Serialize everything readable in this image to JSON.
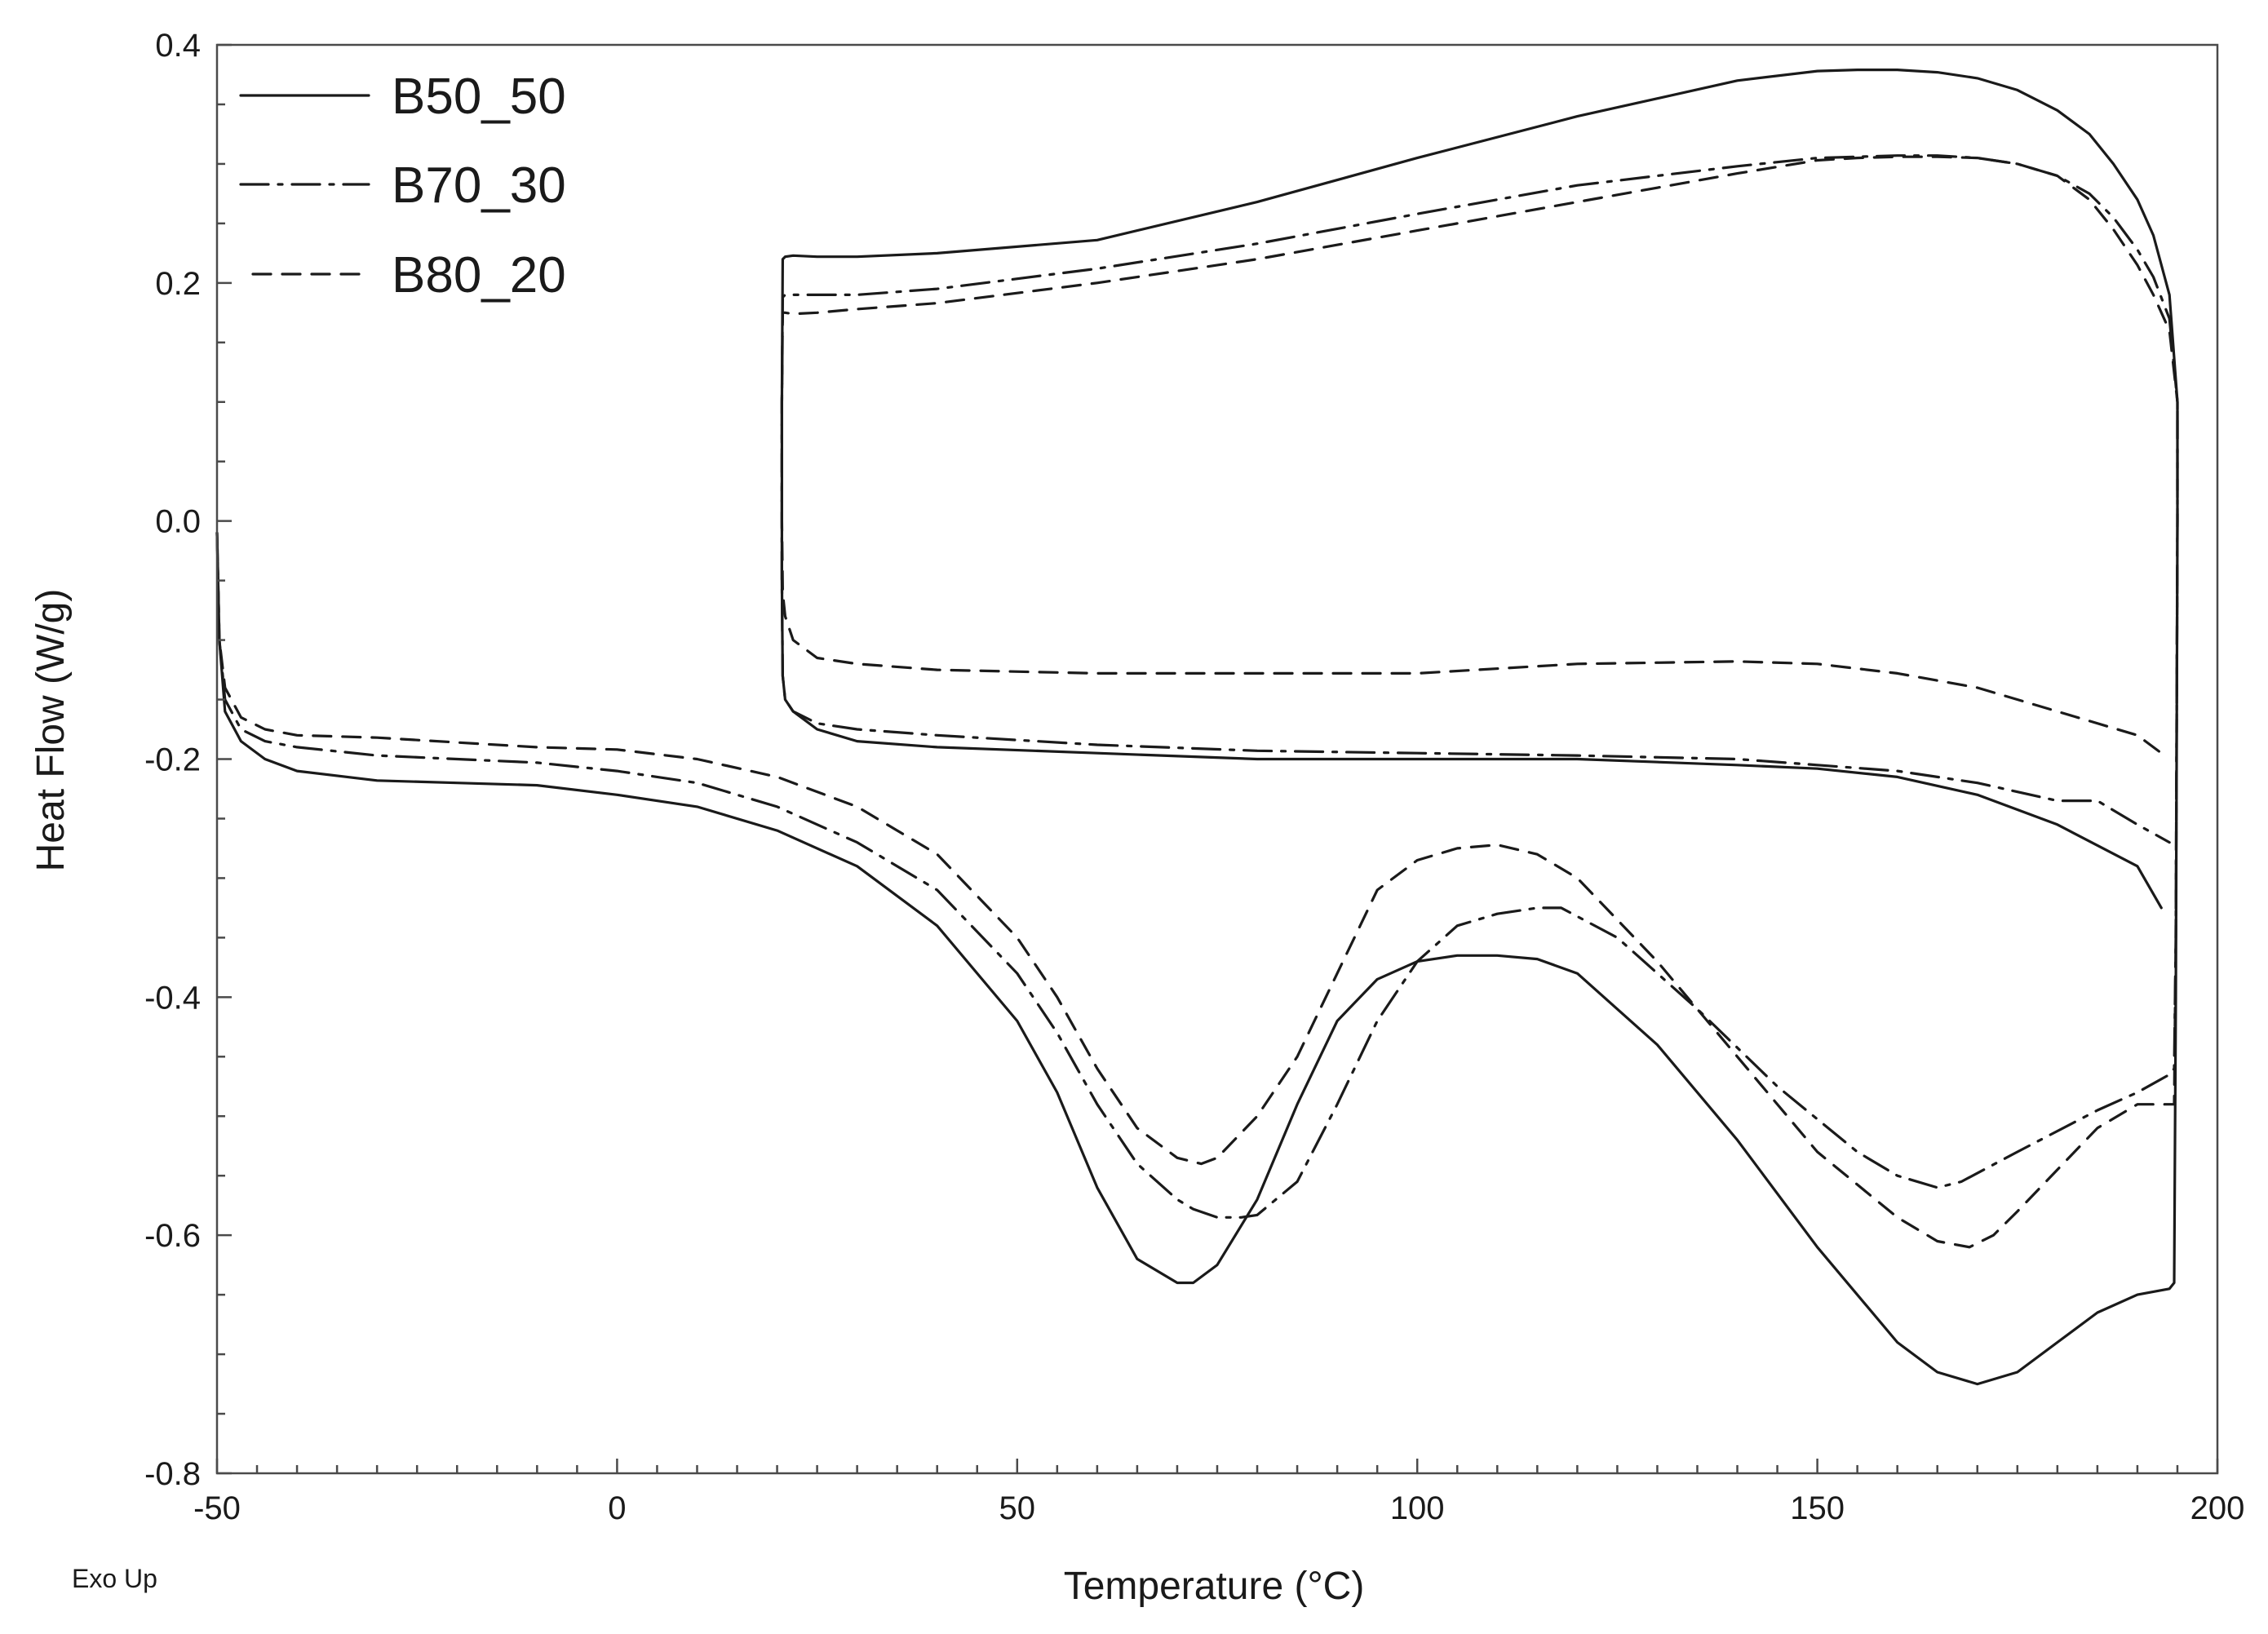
{
  "chart_data": {
    "type": "line",
    "title": "",
    "xlabel": "Temperature (°C)",
    "ylabel": "Heat Flow (W/g)",
    "corner_note": "Exo Up",
    "xlim": [
      -50,
      200
    ],
    "ylim": [
      -0.8,
      0.4
    ],
    "x_ticks": [
      -50,
      0,
      50,
      100,
      150,
      200
    ],
    "x_tick_labels": [
      "-50",
      "0",
      "50",
      "100",
      "150",
      "200"
    ],
    "y_ticks": [
      0.4,
      0.2,
      0.0,
      -0.2,
      -0.4,
      -0.6,
      -0.8
    ],
    "y_tick_labels": [
      "0.4",
      "0.2",
      "0.0",
      "-0.2",
      "-0.4",
      "-0.6",
      "-0.8"
    ],
    "legend_position": "top-left",
    "series": [
      {
        "name": "B50_50",
        "style": "solid",
        "x": [
          -50,
          -49.7,
          -49,
          -47,
          -44,
          -40,
          -30,
          -20,
          -10,
          0,
          10,
          20,
          30,
          40,
          50,
          55,
          60,
          65,
          70,
          72,
          75,
          80,
          85,
          90,
          95,
          100,
          105,
          110,
          115,
          120,
          130,
          140,
          150,
          160,
          165,
          170,
          175,
          180,
          185,
          190,
          194,
          194.6,
          194.8,
          195,
          195,
          195,
          194,
          192,
          190,
          187,
          184,
          180,
          175,
          170,
          165,
          160,
          155,
          150,
          140,
          120,
          100,
          80,
          60,
          40,
          30,
          25,
          22,
          21,
          20.7,
          20.6,
          20.6,
          20.7,
          21,
          22,
          25,
          30,
          40,
          60,
          80,
          100,
          120,
          140,
          150,
          160,
          170,
          180,
          190,
          193
        ],
        "y": [
          -0.01,
          -0.1,
          -0.16,
          -0.185,
          -0.2,
          -0.21,
          -0.218,
          -0.22,
          -0.222,
          -0.23,
          -0.24,
          -0.26,
          -0.29,
          -0.34,
          -0.42,
          -0.48,
          -0.56,
          -0.62,
          -0.64,
          -0.64,
          -0.625,
          -0.57,
          -0.49,
          -0.42,
          -0.385,
          -0.37,
          -0.365,
          -0.365,
          -0.368,
          -0.38,
          -0.44,
          -0.52,
          -0.61,
          -0.69,
          -0.715,
          -0.725,
          -0.715,
          -0.69,
          -0.665,
          -0.65,
          -0.645,
          -0.64,
          -0.4,
          0.0,
          0.05,
          0.1,
          0.19,
          0.24,
          0.27,
          0.3,
          0.325,
          0.345,
          0.362,
          0.372,
          0.377,
          0.379,
          0.379,
          0.378,
          0.37,
          0.34,
          0.305,
          0.268,
          0.236,
          0.225,
          0.222,
          0.222,
          0.223,
          0.222,
          0.22,
          0.1,
          -0.05,
          -0.13,
          -0.15,
          -0.16,
          -0.175,
          -0.185,
          -0.19,
          -0.195,
          -0.2,
          -0.2,
          -0.2,
          -0.205,
          -0.208,
          -0.215,
          -0.23,
          -0.255,
          -0.29,
          -0.325
        ]
      },
      {
        "name": "B70_30",
        "style": "dashdot",
        "x": [
          -50,
          -49.7,
          -49,
          -47,
          -44,
          -40,
          -30,
          -20,
          -10,
          0,
          10,
          20,
          30,
          40,
          50,
          55,
          60,
          65,
          70,
          72,
          75,
          78,
          80,
          85,
          90,
          95,
          100,
          105,
          110,
          115,
          118,
          125,
          135,
          145,
          155,
          160,
          165,
          168,
          175,
          185,
          190,
          194,
          194.6,
          194.8,
          195,
          195,
          195,
          194,
          192,
          190,
          187,
          184,
          180,
          175,
          170,
          165,
          160,
          155,
          150,
          140,
          120,
          100,
          80,
          60,
          40,
          30,
          25,
          22,
          21,
          20.7,
          20.6,
          20.6,
          20.7,
          21,
          22,
          25,
          30,
          40,
          60,
          80,
          100,
          120,
          140,
          150,
          160,
          170,
          180,
          185,
          190,
          194
        ],
        "y": [
          -0.01,
          -0.1,
          -0.15,
          -0.175,
          -0.185,
          -0.19,
          -0.197,
          -0.2,
          -0.203,
          -0.21,
          -0.22,
          -0.24,
          -0.27,
          -0.31,
          -0.38,
          -0.43,
          -0.49,
          -0.54,
          -0.57,
          -0.578,
          -0.585,
          -0.585,
          -0.583,
          -0.555,
          -0.49,
          -0.42,
          -0.37,
          -0.34,
          -0.33,
          -0.325,
          -0.325,
          -0.35,
          -0.41,
          -0.475,
          -0.53,
          -0.55,
          -0.56,
          -0.555,
          -0.53,
          -0.495,
          -0.48,
          -0.465,
          -0.46,
          -0.35,
          0.0,
          0.05,
          0.1,
          0.17,
          0.205,
          0.228,
          0.255,
          0.275,
          0.29,
          0.3,
          0.305,
          0.307,
          0.307,
          0.306,
          0.305,
          0.298,
          0.282,
          0.258,
          0.233,
          0.212,
          0.195,
          0.19,
          0.19,
          0.19,
          0.19,
          0.188,
          0.1,
          -0.05,
          -0.13,
          -0.15,
          -0.16,
          -0.17,
          -0.175,
          -0.18,
          -0.188,
          -0.193,
          -0.195,
          -0.197,
          -0.2,
          -0.205,
          -0.21,
          -0.22,
          -0.235,
          -0.235,
          -0.255,
          -0.27
        ]
      },
      {
        "name": "B80_20",
        "style": "dashed",
        "x": [
          -50,
          -49.7,
          -49,
          -47,
          -44,
          -40,
          -30,
          -20,
          -10,
          0,
          10,
          20,
          30,
          40,
          50,
          55,
          60,
          65,
          70,
          73,
          75,
          80,
          85,
          90,
          95,
          100,
          105,
          110,
          115,
          120,
          130,
          140,
          150,
          160,
          165,
          169,
          172,
          175,
          180,
          185,
          190,
          194,
          194.6,
          194.8,
          195,
          195,
          195,
          194,
          192,
          190,
          187,
          184,
          180,
          175,
          170,
          165,
          160,
          155,
          150,
          140,
          120,
          100,
          80,
          60,
          40,
          30,
          25,
          22,
          21,
          20.7,
          20.6,
          20.6,
          20.7,
          21,
          22,
          25,
          30,
          40,
          60,
          80,
          100,
          120,
          140,
          150,
          160,
          170,
          180,
          190,
          193
        ],
        "y": [
          -0.01,
          -0.1,
          -0.14,
          -0.165,
          -0.175,
          -0.18,
          -0.182,
          -0.186,
          -0.19,
          -0.192,
          -0.2,
          -0.215,
          -0.24,
          -0.28,
          -0.35,
          -0.4,
          -0.46,
          -0.51,
          -0.535,
          -0.54,
          -0.535,
          -0.5,
          -0.45,
          -0.38,
          -0.31,
          -0.285,
          -0.275,
          -0.272,
          -0.28,
          -0.3,
          -0.37,
          -0.45,
          -0.53,
          -0.585,
          -0.605,
          -0.61,
          -0.6,
          -0.58,
          -0.545,
          -0.51,
          -0.49,
          -0.49,
          -0.49,
          -0.35,
          0.0,
          0.05,
          0.1,
          0.16,
          0.19,
          0.215,
          0.245,
          0.27,
          0.29,
          0.3,
          0.305,
          0.306,
          0.306,
          0.305,
          0.303,
          0.292,
          0.268,
          0.244,
          0.22,
          0.2,
          0.183,
          0.178,
          0.175,
          0.174,
          0.175,
          0.175,
          0.1,
          0.0,
          -0.06,
          -0.08,
          -0.1,
          -0.115,
          -0.12,
          -0.125,
          -0.128,
          -0.128,
          -0.128,
          -0.12,
          -0.118,
          -0.12,
          -0.128,
          -0.14,
          -0.16,
          -0.18,
          -0.195
        ]
      }
    ]
  }
}
